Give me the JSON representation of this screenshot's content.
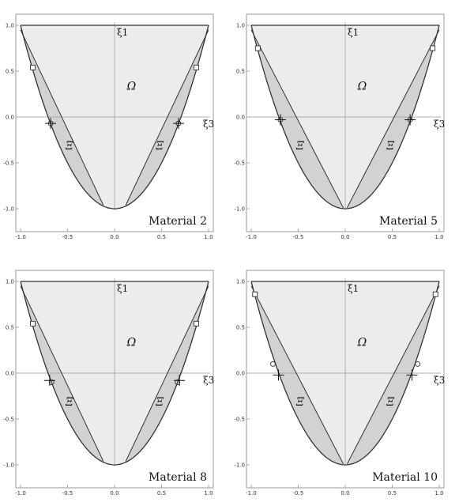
{
  "figure": {
    "colors": {
      "omega_fill": "#ececec",
      "xi_fill": "#d2d2d2",
      "edge": "#333333",
      "axis": "#999999",
      "frame": "#9a9a9a"
    }
  },
  "chart_data": [
    {
      "type": "area",
      "title": "",
      "panel_label": "Material 2",
      "xlim": [
        -1.0,
        1.0
      ],
      "ylim": [
        -1.0,
        1.0
      ],
      "x_ticks": [
        "-1.0",
        "-0.5",
        "0.0",
        "0.5",
        "1.0"
      ],
      "y_ticks": [
        "1.0",
        "0.5",
        "0.0",
        "-0.5",
        "-1.0"
      ],
      "axis_labels": {
        "vertical": "ξ1",
        "horizontal": "ξ3"
      },
      "region_labels": {
        "omega": "Ω",
        "xi": "Ξ"
      },
      "outer_boundary": "parabola y = 2x^2 - 1 for |x| <= 1, closed by the line y = 1",
      "inner_boundary_left": {
        "from": [
          -1.0,
          0.95
        ],
        "to": [
          -0.12,
          -0.96
        ]
      },
      "inner_boundary_right": {
        "from": [
          1.0,
          0.95
        ],
        "to": [
          0.12,
          -0.96
        ]
      },
      "markers": {
        "square": [
          [
            -0.87,
            0.54
          ],
          [
            0.87,
            0.54
          ]
        ],
        "circle": [
          [
            -0.68,
            -0.07
          ],
          [
            0.68,
            -0.07
          ]
        ],
        "plus": [
          [
            -0.68,
            -0.07
          ],
          [
            0.68,
            -0.07
          ]
        ]
      }
    },
    {
      "type": "area",
      "title": "",
      "panel_label": "Material 5",
      "xlim": [
        -1.0,
        1.0
      ],
      "ylim": [
        -1.0,
        1.0
      ],
      "x_ticks": [
        "-1.0",
        "-0.5",
        "0.0",
        "0.5",
        "1.0"
      ],
      "y_ticks": [
        "1.0",
        "0.5",
        "0.0",
        "-0.5",
        "-1.0"
      ],
      "axis_labels": {
        "vertical": "ξ1",
        "horizontal": "ξ3"
      },
      "region_labels": {
        "omega": "Ω",
        "xi": "Ξ"
      },
      "outer_boundary": "parabola y = 2x^2 - 1 for |x| <= 1, closed by the line y = 1",
      "inner_boundary_left": {
        "from": [
          -1.0,
          0.95
        ],
        "to": [
          -0.02,
          -0.99
        ]
      },
      "inner_boundary_right": {
        "from": [
          1.0,
          0.95
        ],
        "to": [
          0.02,
          -0.99
        ]
      },
      "markers": {
        "square": [
          [
            -0.93,
            0.75
          ],
          [
            0.93,
            0.75
          ]
        ],
        "circle": [
          [
            -0.69,
            -0.03
          ],
          [
            0.69,
            -0.03
          ]
        ],
        "plus": [
          [
            -0.69,
            -0.03
          ],
          [
            0.69,
            -0.03
          ]
        ]
      }
    },
    {
      "type": "area",
      "title": "",
      "panel_label": "Material 8",
      "xlim": [
        -1.0,
        1.0
      ],
      "ylim": [
        -1.0,
        1.0
      ],
      "x_ticks": [
        "-1.0",
        "-0.5",
        "0.0",
        "0.5",
        "1.0"
      ],
      "y_ticks": [
        "1.0",
        "0.5",
        "0.0",
        "-0.5",
        "-1.0"
      ],
      "axis_labels": {
        "vertical": "ξ1",
        "horizontal": "ξ3"
      },
      "region_labels": {
        "omega": "Ω",
        "xi": "Ξ"
      },
      "outer_boundary": "parabola y = 2x^2 - 1 for |x| <= 1, closed by the line y = 1",
      "inner_boundary_left": {
        "from": [
          -1.0,
          0.95
        ],
        "to": [
          -0.12,
          -0.96
        ]
      },
      "inner_boundary_right": {
        "from": [
          1.0,
          0.95
        ],
        "to": [
          0.12,
          -0.96
        ]
      },
      "markers": {
        "square": [
          [
            -0.87,
            0.54
          ],
          [
            0.87,
            0.54
          ]
        ],
        "circle": [
          [
            -0.67,
            -0.1
          ],
          [
            0.67,
            -0.1
          ]
        ],
        "plus": [
          [
            -0.69,
            -0.08
          ],
          [
            0.69,
            -0.08
          ]
        ]
      }
    },
    {
      "type": "area",
      "title": "",
      "panel_label": "Material 10",
      "xlim": [
        -1.0,
        1.0
      ],
      "ylim": [
        -1.0,
        1.0
      ],
      "x_ticks": [
        "-1.0",
        "-0.5",
        "0.0",
        "0.5",
        "1.0"
      ],
      "y_ticks": [
        "1.0",
        "0.5",
        "0.0",
        "-0.5",
        "-1.0"
      ],
      "axis_labels": {
        "vertical": "ξ1",
        "horizontal": "ξ3"
      },
      "region_labels": {
        "omega": "Ω",
        "xi": "Ξ"
      },
      "outer_boundary": "parabola y = 2x^2 - 1 for |x| <= 1, closed by the line y = 1",
      "inner_boundary_left": {
        "from": [
          -1.0,
          0.95
        ],
        "to": [
          -0.02,
          -0.99
        ]
      },
      "inner_boundary_right": {
        "from": [
          1.0,
          0.95
        ],
        "to": [
          0.02,
          -0.99
        ]
      },
      "markers": {
        "square": [
          [
            -0.96,
            0.86
          ],
          [
            0.96,
            0.86
          ]
        ],
        "circle": [
          [
            -0.77,
            0.1
          ],
          [
            0.77,
            0.1
          ]
        ],
        "plus": [
          [
            -0.71,
            -0.02
          ],
          [
            0.71,
            -0.02
          ]
        ]
      }
    }
  ]
}
